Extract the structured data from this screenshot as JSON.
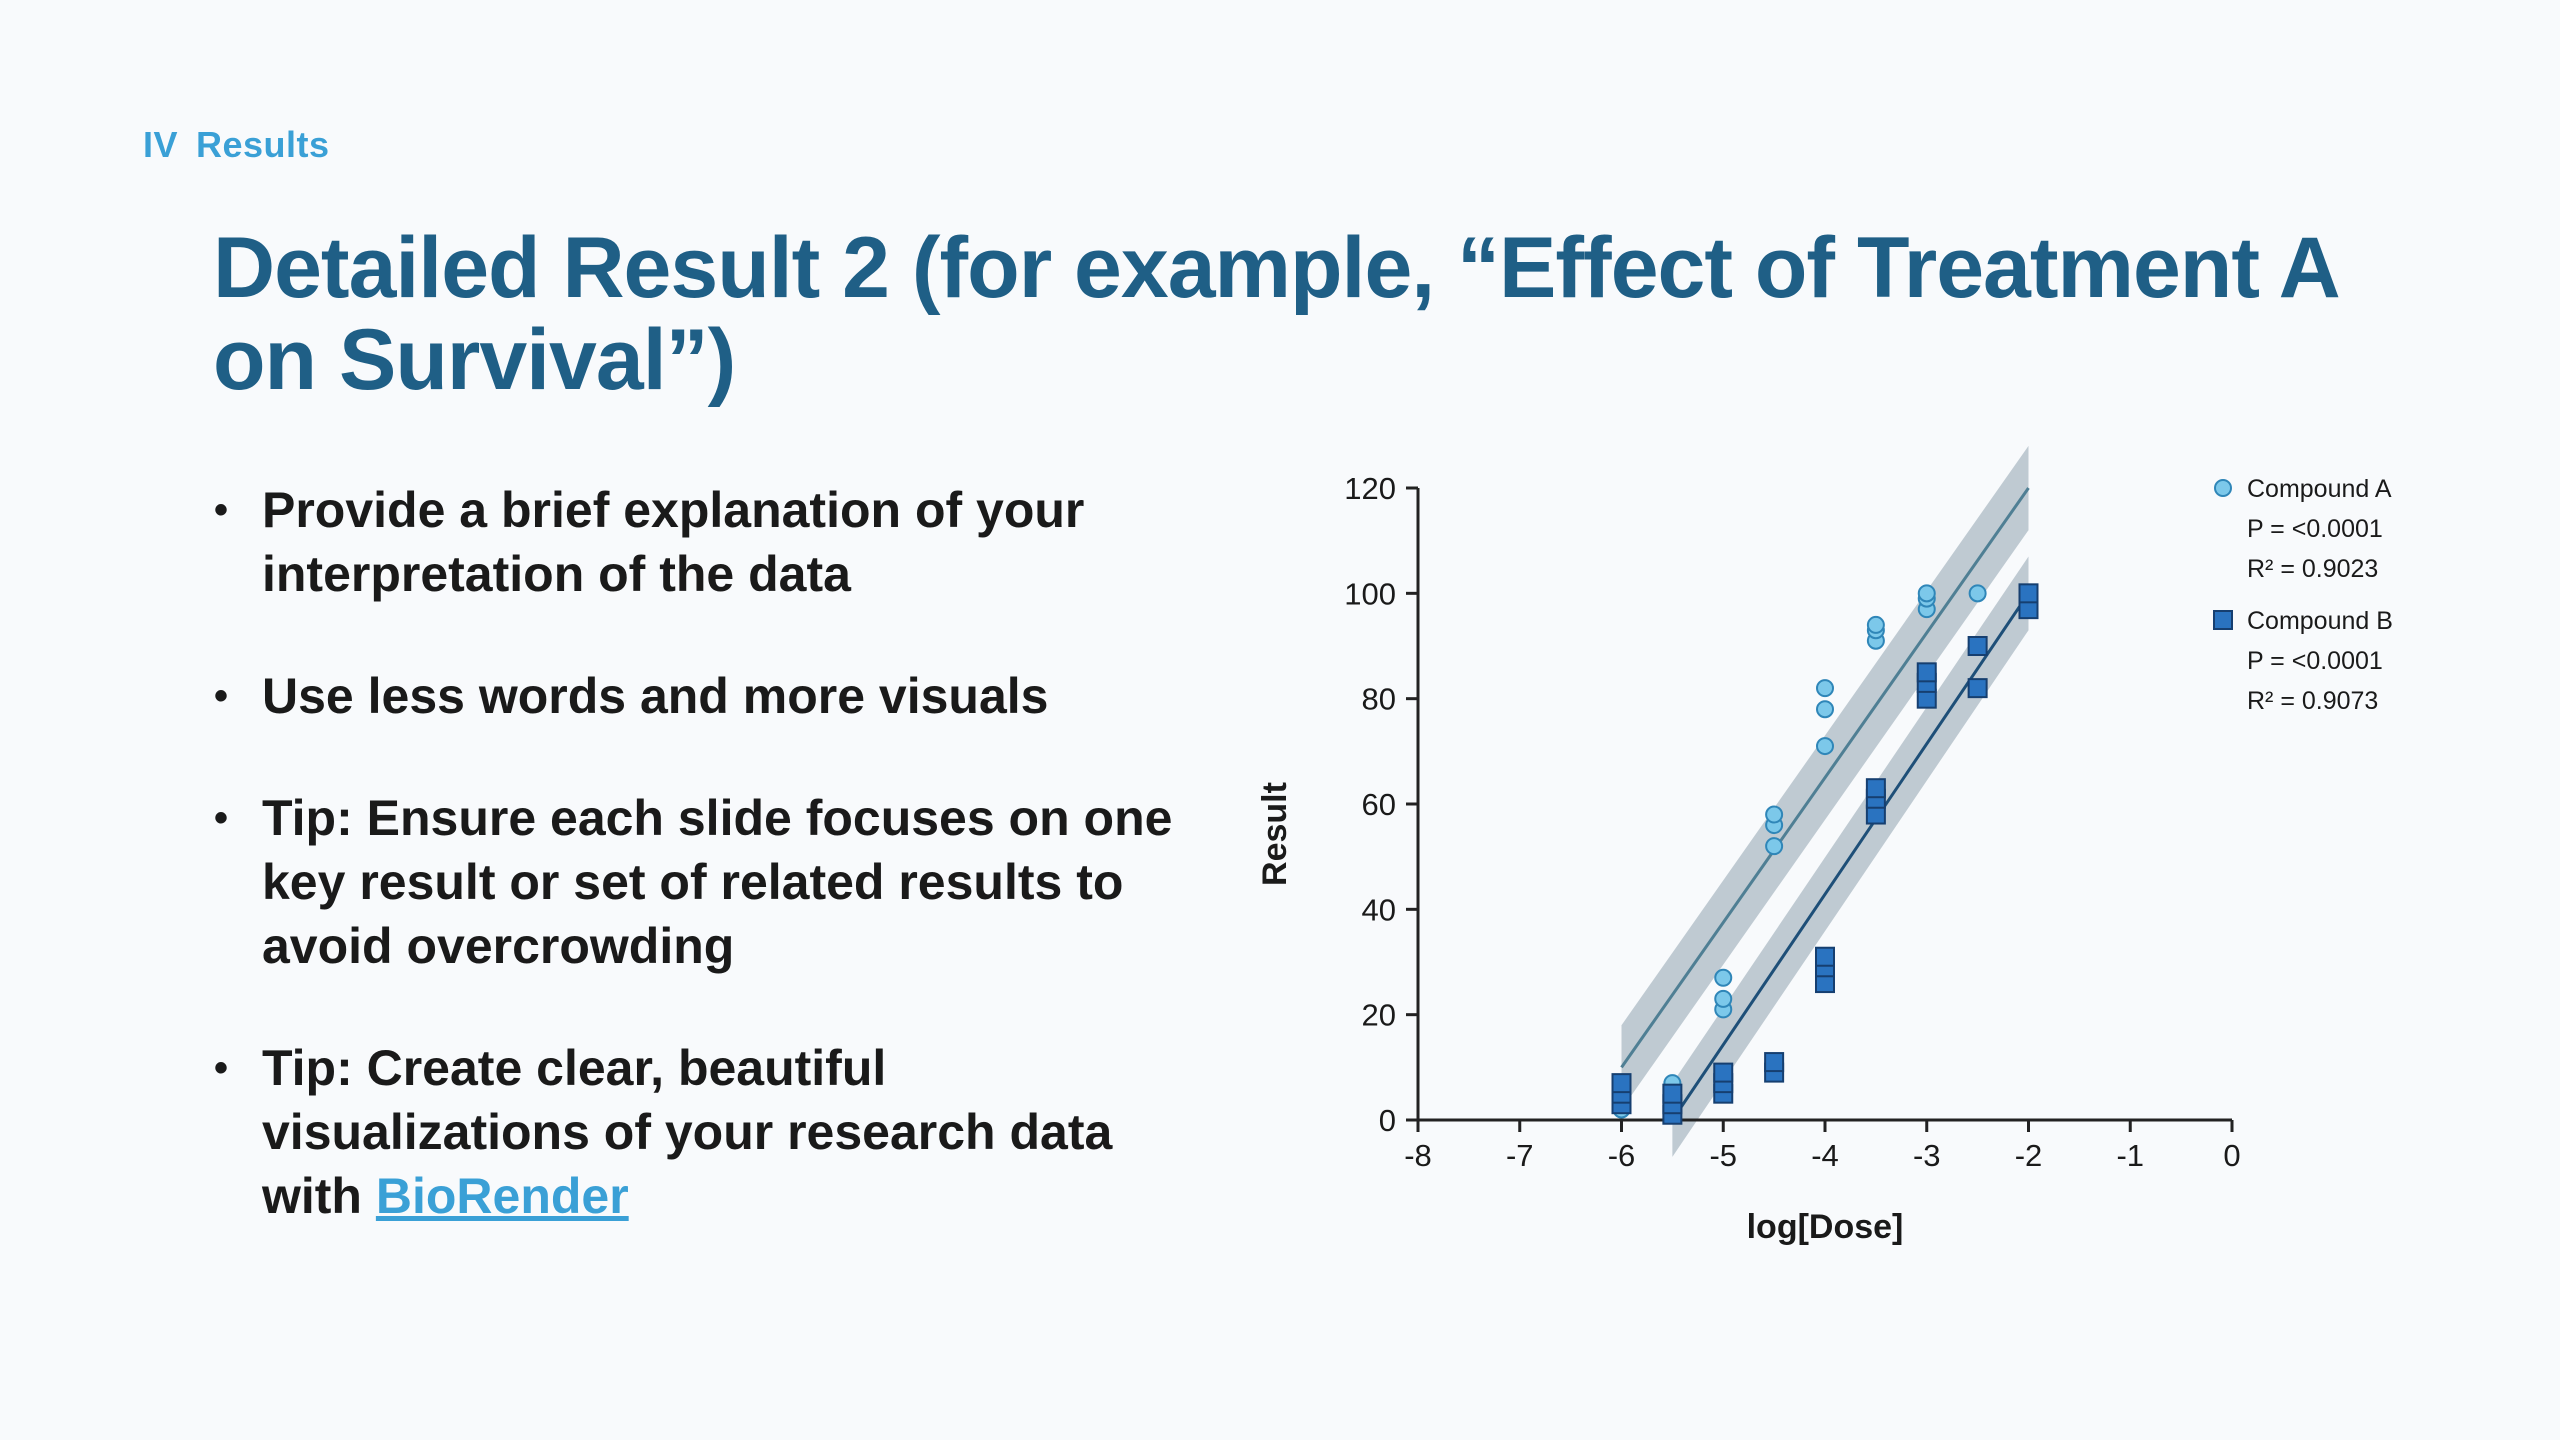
{
  "section": {
    "numeral": "IV",
    "label": "Results"
  },
  "title": "Detailed Result 2 (for example, “Effect of Treatment A on Survival”)",
  "bullets": [
    {
      "text": "Provide a brief explanation of your interpretation of the data"
    },
    {
      "text": "Use less words and more visuals"
    },
    {
      "text": "Tip: Ensure each slide focuses on one key result or set of related results to avoid overcrowding"
    },
    {
      "text": "Tip: Create clear, beautiful visualizations of your research data with ",
      "link": "BioRender"
    }
  ],
  "colors": {
    "title": "#1f5f86",
    "accent": "#3aa0d6",
    "compound_a_fill": "#7cc8ea",
    "compound_a_stroke": "#2f86b8",
    "compound_b_fill": "#2a73c0",
    "compound_b_stroke": "#163f70",
    "line_a": "#4f7f94",
    "line_b": "#1e4f78",
    "band": "#8fa3ae"
  },
  "chart_data": {
    "type": "scatter",
    "title": "",
    "xlabel": "log[Dose]",
    "ylabel": "Result",
    "xlim": [
      -8,
      0
    ],
    "ylim": [
      0,
      120
    ],
    "xticks": [
      -8,
      -7,
      -6,
      -5,
      -4,
      -3,
      -2,
      -1,
      0
    ],
    "yticks": [
      0,
      20,
      40,
      60,
      80,
      100,
      120
    ],
    "legend_position": "top-right",
    "series": [
      {
        "name": "Compound A",
        "marker": "circle",
        "stats": [
          "P = <0.0001",
          "R² = 0.9023"
        ],
        "fit": {
          "x": [
            -6,
            -2
          ],
          "y": [
            10,
            120
          ],
          "band": 8
        },
        "points": [
          {
            "x": -6,
            "y": 2
          },
          {
            "x": -6,
            "y": 4
          },
          {
            "x": -6,
            "y": 6
          },
          {
            "x": -5.5,
            "y": 5
          },
          {
            "x": -5.5,
            "y": 7
          },
          {
            "x": -5,
            "y": 21
          },
          {
            "x": -5,
            "y": 23
          },
          {
            "x": -5,
            "y": 27
          },
          {
            "x": -4.5,
            "y": 52
          },
          {
            "x": -4.5,
            "y": 56
          },
          {
            "x": -4.5,
            "y": 58
          },
          {
            "x": -4,
            "y": 71
          },
          {
            "x": -4,
            "y": 78
          },
          {
            "x": -4,
            "y": 82
          },
          {
            "x": -3.5,
            "y": 91
          },
          {
            "x": -3.5,
            "y": 93
          },
          {
            "x": -3.5,
            "y": 94
          },
          {
            "x": -3,
            "y": 97
          },
          {
            "x": -3,
            "y": 99
          },
          {
            "x": -3,
            "y": 100
          },
          {
            "x": -2.5,
            "y": 100
          }
        ]
      },
      {
        "name": "Compound B",
        "marker": "square",
        "stats": [
          "P = <0.0001",
          "R² = 0.9073"
        ],
        "fit": {
          "x": [
            -5.5,
            -2
          ],
          "y": [
            0,
            100
          ],
          "band": 7
        },
        "points": [
          {
            "x": -6,
            "y": 3
          },
          {
            "x": -6,
            "y": 5
          },
          {
            "x": -6,
            "y": 7
          },
          {
            "x": -5.5,
            "y": 1
          },
          {
            "x": -5.5,
            "y": 3
          },
          {
            "x": -5.5,
            "y": 5
          },
          {
            "x": -5,
            "y": 5
          },
          {
            "x": -5,
            "y": 7
          },
          {
            "x": -5,
            "y": 9
          },
          {
            "x": -4.5,
            "y": 9
          },
          {
            "x": -4.5,
            "y": 11
          },
          {
            "x": -4,
            "y": 26
          },
          {
            "x": -4,
            "y": 29
          },
          {
            "x": -4,
            "y": 31
          },
          {
            "x": -3.5,
            "y": 58
          },
          {
            "x": -3.5,
            "y": 61
          },
          {
            "x": -3.5,
            "y": 63
          },
          {
            "x": -3,
            "y": 80
          },
          {
            "x": -3,
            "y": 83
          },
          {
            "x": -3,
            "y": 85
          },
          {
            "x": -2.5,
            "y": 82
          },
          {
            "x": -2.5,
            "y": 90
          },
          {
            "x": -2,
            "y": 97
          },
          {
            "x": -2,
            "y": 100
          }
        ]
      }
    ]
  }
}
